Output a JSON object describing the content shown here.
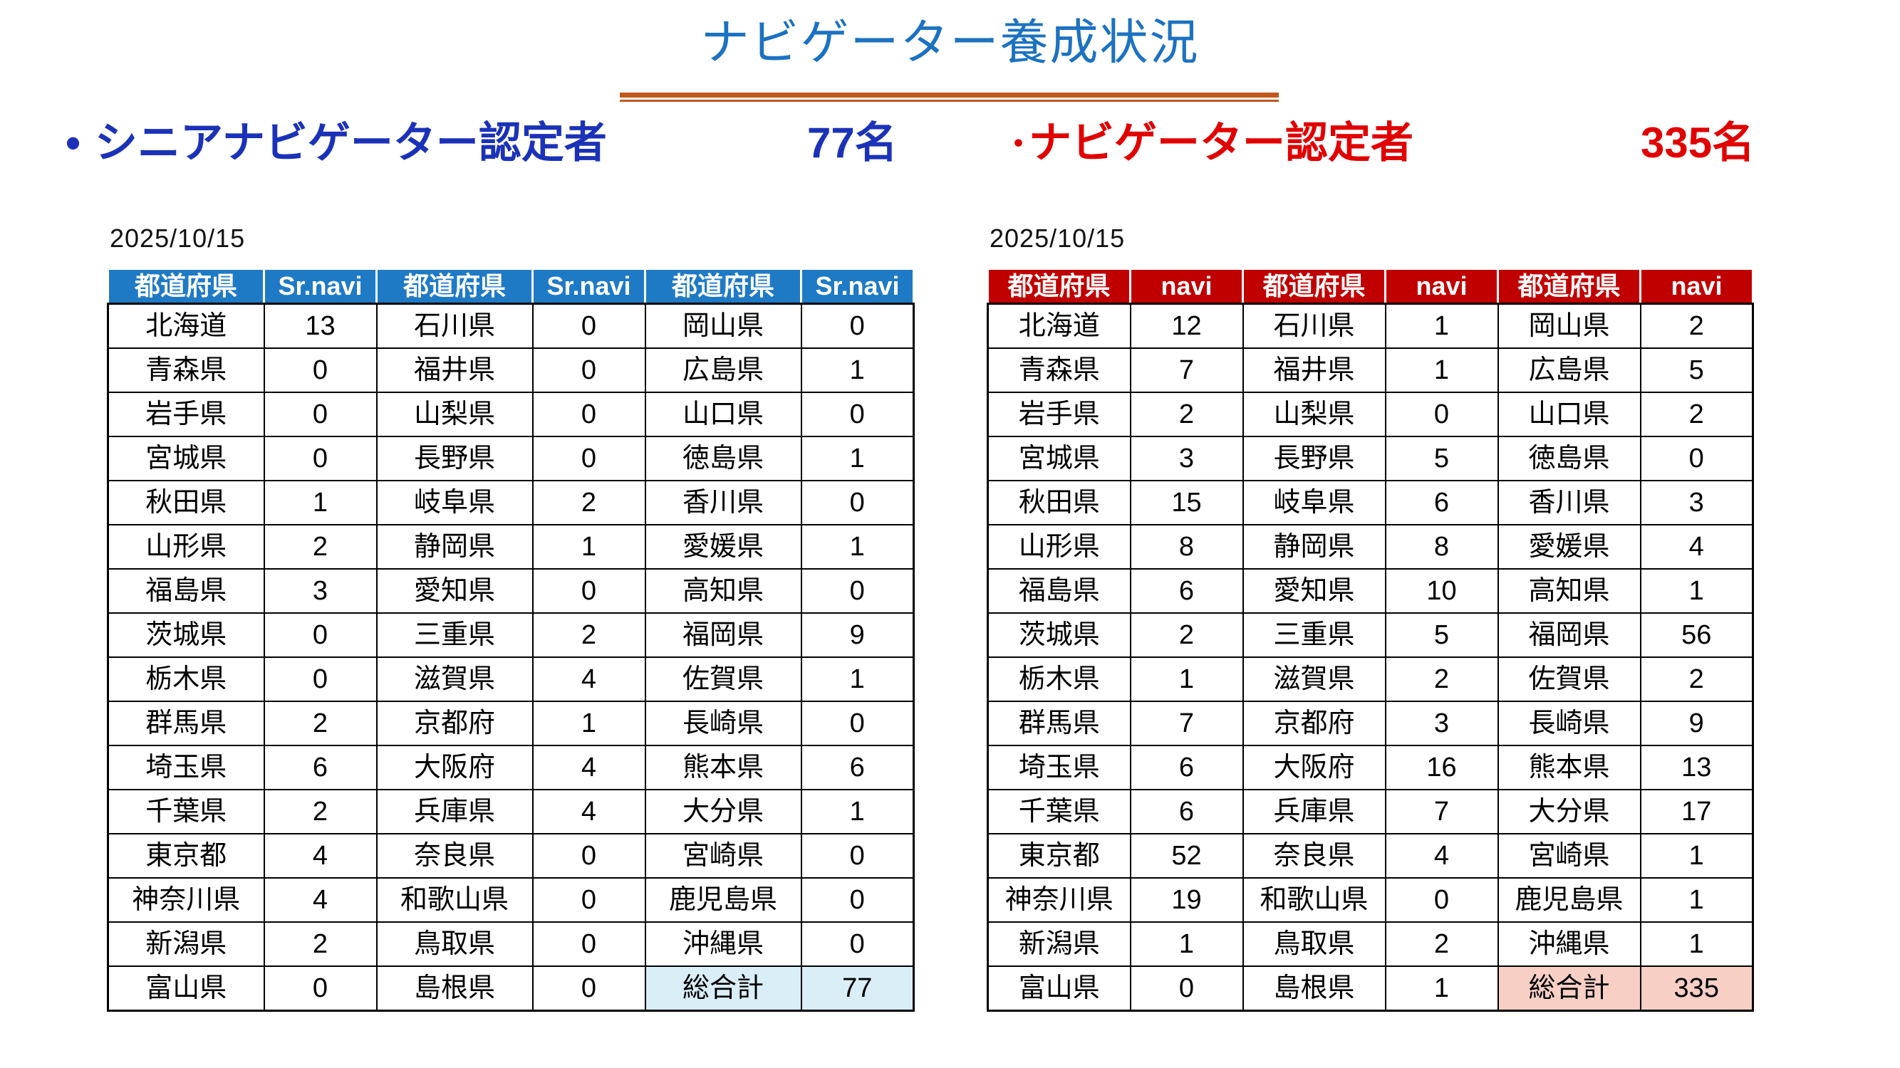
{
  "title": "ナビゲーター養成状況",
  "subtitles": {
    "left": {
      "bullet": "•",
      "label": "シニアナビゲーター認定者",
      "count": "77名"
    },
    "right": {
      "bullet": "•",
      "label": "ナビゲーター認定者",
      "count": "335名"
    }
  },
  "tables": {
    "left": {
      "date": "2025/10/15",
      "headers": [
        "都道府県",
        "Sr.navi",
        "都道府県",
        "Sr.navi",
        "都道府県",
        "Sr.navi"
      ],
      "rows": [
        [
          "北海道",
          "13",
          "石川県",
          "0",
          "岡山県",
          "0"
        ],
        [
          "青森県",
          "0",
          "福井県",
          "0",
          "広島県",
          "1"
        ],
        [
          "岩手県",
          "0",
          "山梨県",
          "0",
          "山口県",
          "0"
        ],
        [
          "宮城県",
          "0",
          "長野県",
          "0",
          "徳島県",
          "1"
        ],
        [
          "秋田県",
          "1",
          "岐阜県",
          "2",
          "香川県",
          "0"
        ],
        [
          "山形県",
          "2",
          "静岡県",
          "1",
          "愛媛県",
          "1"
        ],
        [
          "福島県",
          "3",
          "愛知県",
          "0",
          "高知県",
          "0"
        ],
        [
          "茨城県",
          "0",
          "三重県",
          "2",
          "福岡県",
          "9"
        ],
        [
          "栃木県",
          "0",
          "滋賀県",
          "4",
          "佐賀県",
          "1"
        ],
        [
          "群馬県",
          "2",
          "京都府",
          "1",
          "長崎県",
          "0"
        ],
        [
          "埼玉県",
          "6",
          "大阪府",
          "4",
          "熊本県",
          "6"
        ],
        [
          "千葉県",
          "2",
          "兵庫県",
          "4",
          "大分県",
          "1"
        ],
        [
          "東京都",
          "4",
          "奈良県",
          "0",
          "宮崎県",
          "0"
        ],
        [
          "神奈川県",
          "4",
          "和歌山県",
          "0",
          "鹿児島県",
          "0"
        ],
        [
          "新潟県",
          "2",
          "鳥取県",
          "0",
          "沖縄県",
          "0"
        ],
        [
          "富山県",
          "0",
          "島根県",
          "0",
          "総合計",
          "77"
        ]
      ],
      "total_label": "総合計",
      "total_value": "77"
    },
    "right": {
      "date": "2025/10/15",
      "headers": [
        "都道府県",
        "navi",
        "都道府県",
        "navi",
        "都道府県",
        "navi"
      ],
      "rows": [
        [
          "北海道",
          "12",
          "石川県",
          "1",
          "岡山県",
          "2"
        ],
        [
          "青森県",
          "7",
          "福井県",
          "1",
          "広島県",
          "5"
        ],
        [
          "岩手県",
          "2",
          "山梨県",
          "0",
          "山口県",
          "2"
        ],
        [
          "宮城県",
          "3",
          "長野県",
          "5",
          "徳島県",
          "0"
        ],
        [
          "秋田県",
          "15",
          "岐阜県",
          "6",
          "香川県",
          "3"
        ],
        [
          "山形県",
          "8",
          "静岡県",
          "8",
          "愛媛県",
          "4"
        ],
        [
          "福島県",
          "6",
          "愛知県",
          "10",
          "高知県",
          "1"
        ],
        [
          "茨城県",
          "2",
          "三重県",
          "5",
          "福岡県",
          "56"
        ],
        [
          "栃木県",
          "1",
          "滋賀県",
          "2",
          "佐賀県",
          "2"
        ],
        [
          "群馬県",
          "7",
          "京都府",
          "3",
          "長崎県",
          "9"
        ],
        [
          "埼玉県",
          "6",
          "大阪府",
          "16",
          "熊本県",
          "13"
        ],
        [
          "千葉県",
          "6",
          "兵庫県",
          "7",
          "大分県",
          "17"
        ],
        [
          "東京都",
          "52",
          "奈良県",
          "4",
          "宮崎県",
          "1"
        ],
        [
          "神奈川県",
          "19",
          "和歌山県",
          "0",
          "鹿児島県",
          "1"
        ],
        [
          "新潟県",
          "1",
          "鳥取県",
          "2",
          "沖縄県",
          "1"
        ],
        [
          "富山県",
          "0",
          "島根県",
          "1",
          "総合計",
          "335"
        ]
      ],
      "total_label": "総合計",
      "total_value": "335"
    }
  },
  "colors": {
    "title_blue": "#1B72C1",
    "subtitle_blue": "#1B32B8",
    "text_red": "#E10000",
    "header_blue": "#1F7AC5",
    "header_red": "#C00000",
    "underline_orange": "#C2571B",
    "total_blue": "#D9EEF6",
    "total_pink": "#F7CFC5"
  }
}
